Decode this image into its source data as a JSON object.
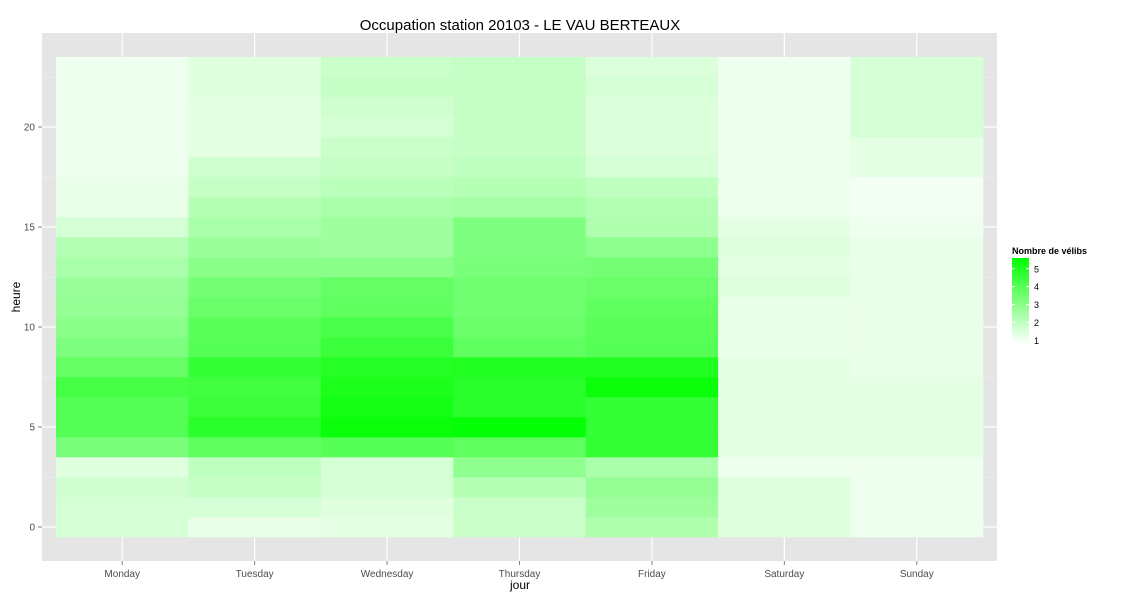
{
  "chart_data": {
    "type": "heatmap",
    "title": "Occupation station 20103 - LE VAU BERTEAUX",
    "xlabel": "jour",
    "ylabel": "heure",
    "x_categories": [
      "Monday",
      "Tuesday",
      "Wednesday",
      "Thursday",
      "Friday",
      "Saturday",
      "Sunday"
    ],
    "y_values": [
      0,
      1,
      2,
      3,
      4,
      5,
      6,
      7,
      8,
      9,
      10,
      11,
      12,
      13,
      14,
      15,
      16,
      17,
      18,
      19,
      20,
      21,
      22,
      23
    ],
    "y_ticks": [
      0,
      5,
      10,
      15,
      20
    ],
    "ylim": [
      -0.5,
      23.5
    ],
    "legend": {
      "title": "Nombre de vélibs",
      "ticks": [
        1,
        2,
        3,
        4,
        5
      ],
      "range": [
        0.8,
        5.6
      ],
      "low_color": "#ffffff",
      "high_color": "#00ff00",
      "position": "right"
    },
    "grid": true,
    "panel_background": "#e5e5e5",
    "values": [
      [
        1.6,
        1.2,
        1.3,
        1.8,
        2.3,
        1.4,
        1.1
      ],
      [
        1.6,
        1.6,
        1.4,
        1.8,
        2.6,
        1.4,
        1.1
      ],
      [
        1.7,
        1.9,
        1.6,
        2.2,
        2.8,
        1.4,
        1.1
      ],
      [
        1.4,
        2.0,
        1.6,
        2.9,
        2.4,
        1.1,
        1.1
      ],
      [
        3.3,
        3.8,
        4.0,
        3.8,
        4.6,
        1.3,
        1.3
      ],
      [
        4.0,
        4.8,
        5.4,
        5.5,
        4.6,
        1.3,
        1.3
      ],
      [
        4.0,
        4.5,
        5.2,
        4.8,
        4.6,
        1.3,
        1.3
      ],
      [
        4.3,
        4.4,
        5.1,
        4.8,
        5.4,
        1.3,
        1.3
      ],
      [
        3.7,
        4.6,
        4.9,
        5.0,
        5.0,
        1.3,
        1.2
      ],
      [
        3.2,
        4.0,
        4.5,
        3.8,
        4.0,
        1.2,
        1.2
      ],
      [
        3.0,
        3.9,
        4.2,
        3.6,
        3.9,
        1.2,
        1.2
      ],
      [
        2.8,
        3.6,
        3.8,
        3.5,
        3.8,
        1.2,
        1.2
      ],
      [
        2.7,
        3.4,
        3.7,
        3.5,
        3.6,
        1.4,
        1.2
      ],
      [
        2.4,
        3.0,
        3.0,
        3.3,
        3.4,
        1.3,
        1.2
      ],
      [
        2.2,
        2.7,
        2.6,
        3.2,
        2.9,
        1.4,
        1.2
      ],
      [
        1.6,
        2.4,
        2.6,
        3.2,
        2.3,
        1.3,
        1.1
      ],
      [
        1.2,
        2.2,
        2.4,
        2.5,
        2.2,
        1.1,
        1.0
      ],
      [
        1.2,
        1.9,
        2.1,
        2.2,
        2.0,
        1.1,
        1.0
      ],
      [
        1.1,
        1.7,
        1.9,
        2.0,
        1.6,
        1.1,
        1.3
      ],
      [
        1.1,
        1.3,
        1.8,
        1.9,
        1.5,
        1.1,
        1.3
      ],
      [
        1.1,
        1.3,
        1.6,
        1.9,
        1.5,
        1.1,
        1.6
      ],
      [
        1.1,
        1.3,
        1.7,
        1.9,
        1.5,
        1.1,
        1.6
      ],
      [
        1.1,
        1.4,
        1.9,
        1.9,
        1.6,
        1.1,
        1.6
      ],
      [
        1.1,
        1.4,
        1.8,
        1.9,
        1.5,
        1.1,
        1.6
      ]
    ]
  }
}
